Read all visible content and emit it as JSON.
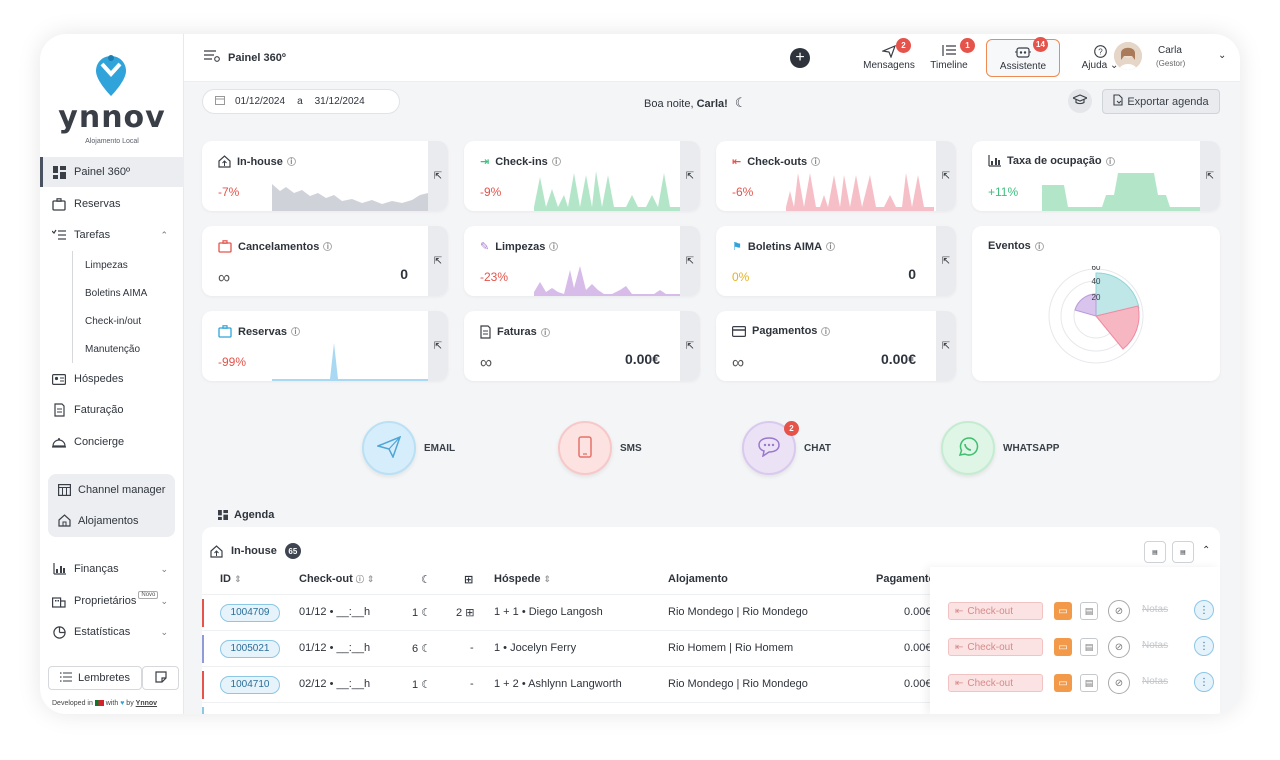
{
  "brand": {
    "name": "ynnov",
    "subtitle": "Alojamento Local",
    "dev_text": "Developed in",
    "dev_with": "with",
    "dev_by": "by",
    "dev_company": "Ynnov",
    "accent": "#2fa3da"
  },
  "sidebar": {
    "items": [
      {
        "label": "Painel 360º",
        "icon": "dashboard-icon"
      },
      {
        "label": "Reservas",
        "icon": "suitcase-icon"
      },
      {
        "label": "Tarefas",
        "icon": "tasks-icon"
      },
      {
        "label": "Hóspedes",
        "icon": "id-card-icon"
      },
      {
        "label": "Faturação",
        "icon": "invoice-icon"
      },
      {
        "label": "Concierge",
        "icon": "bell-icon"
      }
    ],
    "sub_items": [
      "Limpezas",
      "Boletins AIMA",
      "Check-in/out",
      "Manutenção"
    ],
    "group": [
      "Channel manager",
      "Alojamentos"
    ],
    "bottom_items": [
      {
        "label": "Finanças"
      },
      {
        "label": "Proprietários",
        "badge": "Novo"
      },
      {
        "label": "Estatísticas"
      }
    ],
    "lembretes": "Lembretes"
  },
  "header": {
    "title": "Painel 360º",
    "mensagens": {
      "label": "Mensagens",
      "count": "2"
    },
    "timeline": {
      "label": "Timeline",
      "count": "1"
    },
    "assistente": {
      "label": "Assistente",
      "count": "14"
    },
    "ajuda": "Ajuda",
    "user": {
      "name": "Carla",
      "role": "(Gestor)"
    }
  },
  "subbar": {
    "date_from": "01/12/2024",
    "date_sep": "a",
    "date_to": "31/12/2024",
    "greeting": "Boa noite,",
    "greeting_name": "Carla!",
    "export": "Exportar agenda"
  },
  "cards": {
    "inhouse": {
      "title": "In-house",
      "pct": "-7%"
    },
    "checkins": {
      "title": "Check-ins",
      "pct": "-9%"
    },
    "checkouts": {
      "title": "Check-outs",
      "pct": "-6%"
    },
    "ocupacao": {
      "title": "Taxa de ocupação",
      "pct": "+11%"
    },
    "cancelamentos": {
      "title": "Cancelamentos",
      "value": "0",
      "inf": "∞"
    },
    "limpezas": {
      "title": "Limpezas",
      "pct": "-23%"
    },
    "boletins": {
      "title": "Boletins AIMA",
      "pct": "0%",
      "value": "0"
    },
    "eventos": {
      "title": "Eventos",
      "ticks": [
        "60",
        "40",
        "20"
      ]
    },
    "reservas": {
      "title": "Reservas",
      "pct": "-99%"
    },
    "faturas": {
      "title": "Faturas",
      "value": "0.00€",
      "inf": "∞"
    },
    "pagamentos": {
      "title": "Pagamentos",
      "value": "0.00€",
      "inf": "∞"
    }
  },
  "channels": [
    {
      "label": "EMAIL"
    },
    {
      "label": "SMS"
    },
    {
      "label": "CHAT",
      "count": "2"
    },
    {
      "label": "WHATSAPP"
    }
  ],
  "agenda": {
    "title": "Agenda",
    "section": "In-house",
    "count": "65",
    "columns": [
      "ID",
      "Check-out",
      "Hóspede",
      "Alojamento",
      "Pagamento"
    ],
    "rows": [
      {
        "id": "1004709",
        "checkout": "01/12 • __:__h",
        "nights": "1",
        "extra": "2",
        "guest": "1 + 1 • Diego Langosh",
        "alojamento": "Rio Mondego | Rio Mondego",
        "pagamento": "0.00€",
        "color": "#e5534b"
      },
      {
        "id": "1005021",
        "checkout": "01/12 • __:__h",
        "nights": "6",
        "extra": "-",
        "guest": "1 • Jocelyn Ferry",
        "alojamento": "Rio Homem | Rio Homem",
        "pagamento": "0.00€",
        "color": "#8f9ad6"
      },
      {
        "id": "1004710",
        "checkout": "02/12 • __:__h",
        "nights": "1",
        "extra": "-",
        "guest": "1 + 2 • Ashlynn Langworth",
        "alojamento": "Rio Mondego | Rio Mondego",
        "pagamento": "0.00€",
        "color": "#e5534b"
      }
    ],
    "action_label": "Check-out",
    "notes_label": "Notas"
  }
}
